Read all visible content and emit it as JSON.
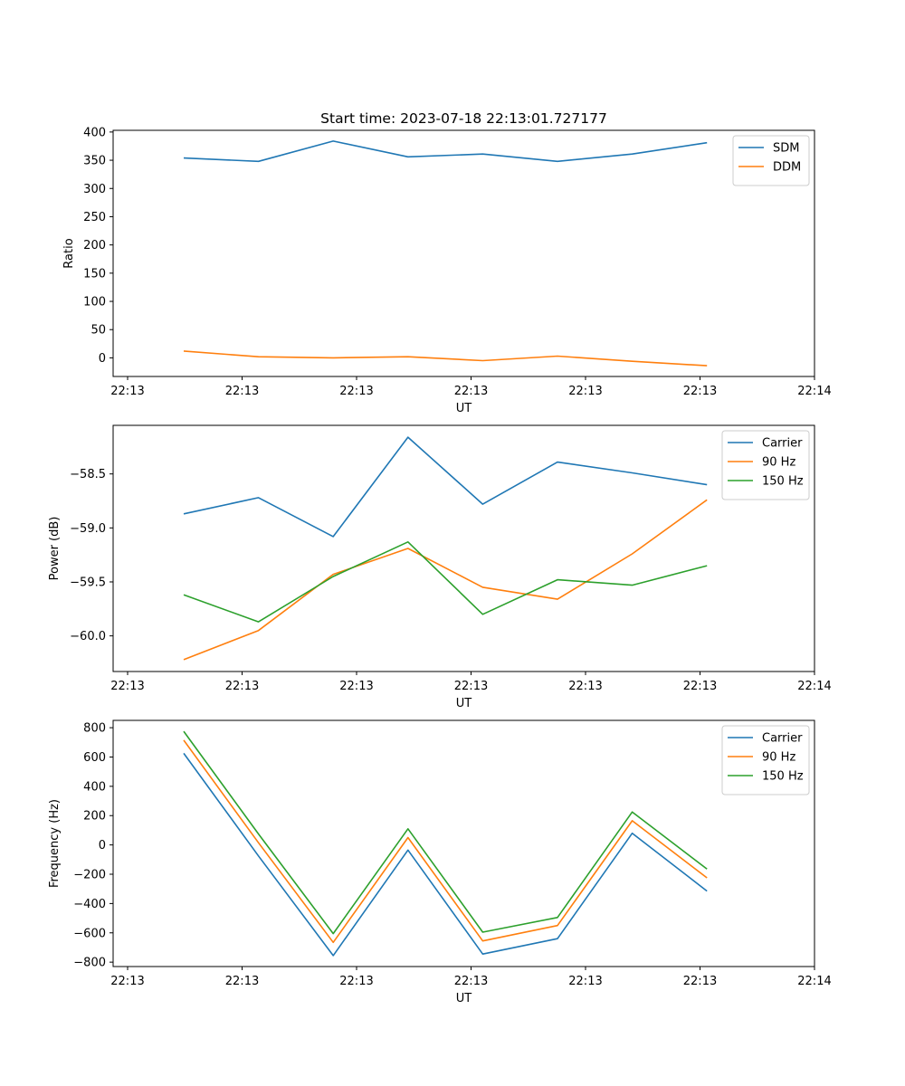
{
  "title": "Start time: 2023-07-18 22:13:01.727177",
  "chart_data": [
    {
      "type": "line",
      "ylabel": "Ratio",
      "xlabel": "UT",
      "x_tick_labels": [
        "22:13",
        "22:13",
        "22:13",
        "22:13",
        "22:13",
        "22:13",
        "22:14"
      ],
      "ylim": [
        -33,
        403
      ],
      "yticks": [
        0,
        50,
        100,
        150,
        200,
        250,
        300,
        350,
        400
      ],
      "ytick_labels": [
        "0",
        "50",
        "100",
        "150",
        "200",
        "250",
        "300",
        "350",
        "400"
      ],
      "legend_position": "top-right",
      "series": [
        {
          "name": "SDM",
          "color": "#1f77b4",
          "values": [
            354,
            348,
            384,
            356,
            361,
            348,
            361,
            381
          ]
        },
        {
          "name": "DDM",
          "color": "#ff7f0e",
          "values": [
            12,
            2,
            0,
            2,
            -5,
            3,
            -6,
            -14
          ]
        }
      ]
    },
    {
      "type": "line",
      "ylabel": "Power (dB)",
      "xlabel": "UT",
      "x_tick_labels": [
        "22:13",
        "22:13",
        "22:13",
        "22:13",
        "22:13",
        "22:13",
        "22:14"
      ],
      "ylim": [
        -60.33,
        -58.05
      ],
      "yticks": [
        -60.0,
        -59.5,
        -59.0,
        -58.5
      ],
      "ytick_labels": [
        "−60.0",
        "−59.5",
        "−59.0",
        "−58.5"
      ],
      "legend_position": "top-right",
      "series": [
        {
          "name": "Carrier",
          "color": "#1f77b4",
          "values": [
            -58.87,
            -58.72,
            -59.08,
            -58.16,
            -58.78,
            -58.39,
            -58.49,
            -58.6
          ]
        },
        {
          "name": "90 Hz",
          "color": "#ff7f0e",
          "values": [
            -60.22,
            -59.95,
            -59.43,
            -59.19,
            -59.55,
            -59.66,
            -59.24,
            -58.74
          ]
        },
        {
          "name": "150 Hz",
          "color": "#2ca02c",
          "values": [
            -59.62,
            -59.87,
            -59.45,
            -59.13,
            -59.8,
            -59.48,
            -59.53,
            -59.35
          ]
        }
      ]
    },
    {
      "type": "line",
      "ylabel": "Frequency (Hz)",
      "xlabel": "UT",
      "x_tick_labels": [
        "22:13",
        "22:13",
        "22:13",
        "22:13",
        "22:13",
        "22:13",
        "22:14"
      ],
      "ylim": [
        -830,
        850
      ],
      "yticks": [
        -800,
        -600,
        -400,
        -200,
        0,
        200,
        400,
        600,
        800
      ],
      "ytick_labels": [
        "−800",
        "−600",
        "−400",
        "−200",
        "0",
        "200",
        "400",
        "600",
        "800"
      ],
      "legend_position": "top-right",
      "series": [
        {
          "name": "Carrier",
          "color": "#1f77b4",
          "values": [
            625,
            -75,
            -755,
            -35,
            -745,
            -640,
            80,
            -315
          ]
        },
        {
          "name": "90 Hz",
          "color": "#ff7f0e",
          "values": [
            715,
            15,
            -665,
            50,
            -655,
            -550,
            165,
            -225
          ]
        },
        {
          "name": "150 Hz",
          "color": "#2ca02c",
          "values": [
            775,
            75,
            -605,
            110,
            -595,
            -495,
            225,
            -165
          ]
        }
      ]
    }
  ]
}
